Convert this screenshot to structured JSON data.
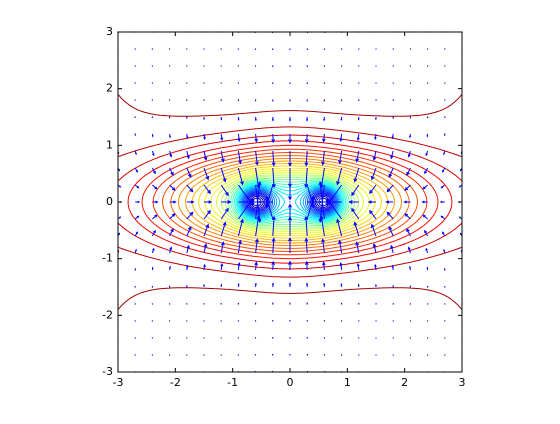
{
  "chart_data": {
    "type": "contour",
    "xlim": [
      -3,
      3
    ],
    "ylim": [
      -3,
      3
    ],
    "xticks": [
      -3,
      -2,
      -1,
      0,
      1,
      2,
      3
    ],
    "yticks": [
      -3,
      -2,
      -1,
      0,
      1,
      2,
      3
    ]
  }
}
